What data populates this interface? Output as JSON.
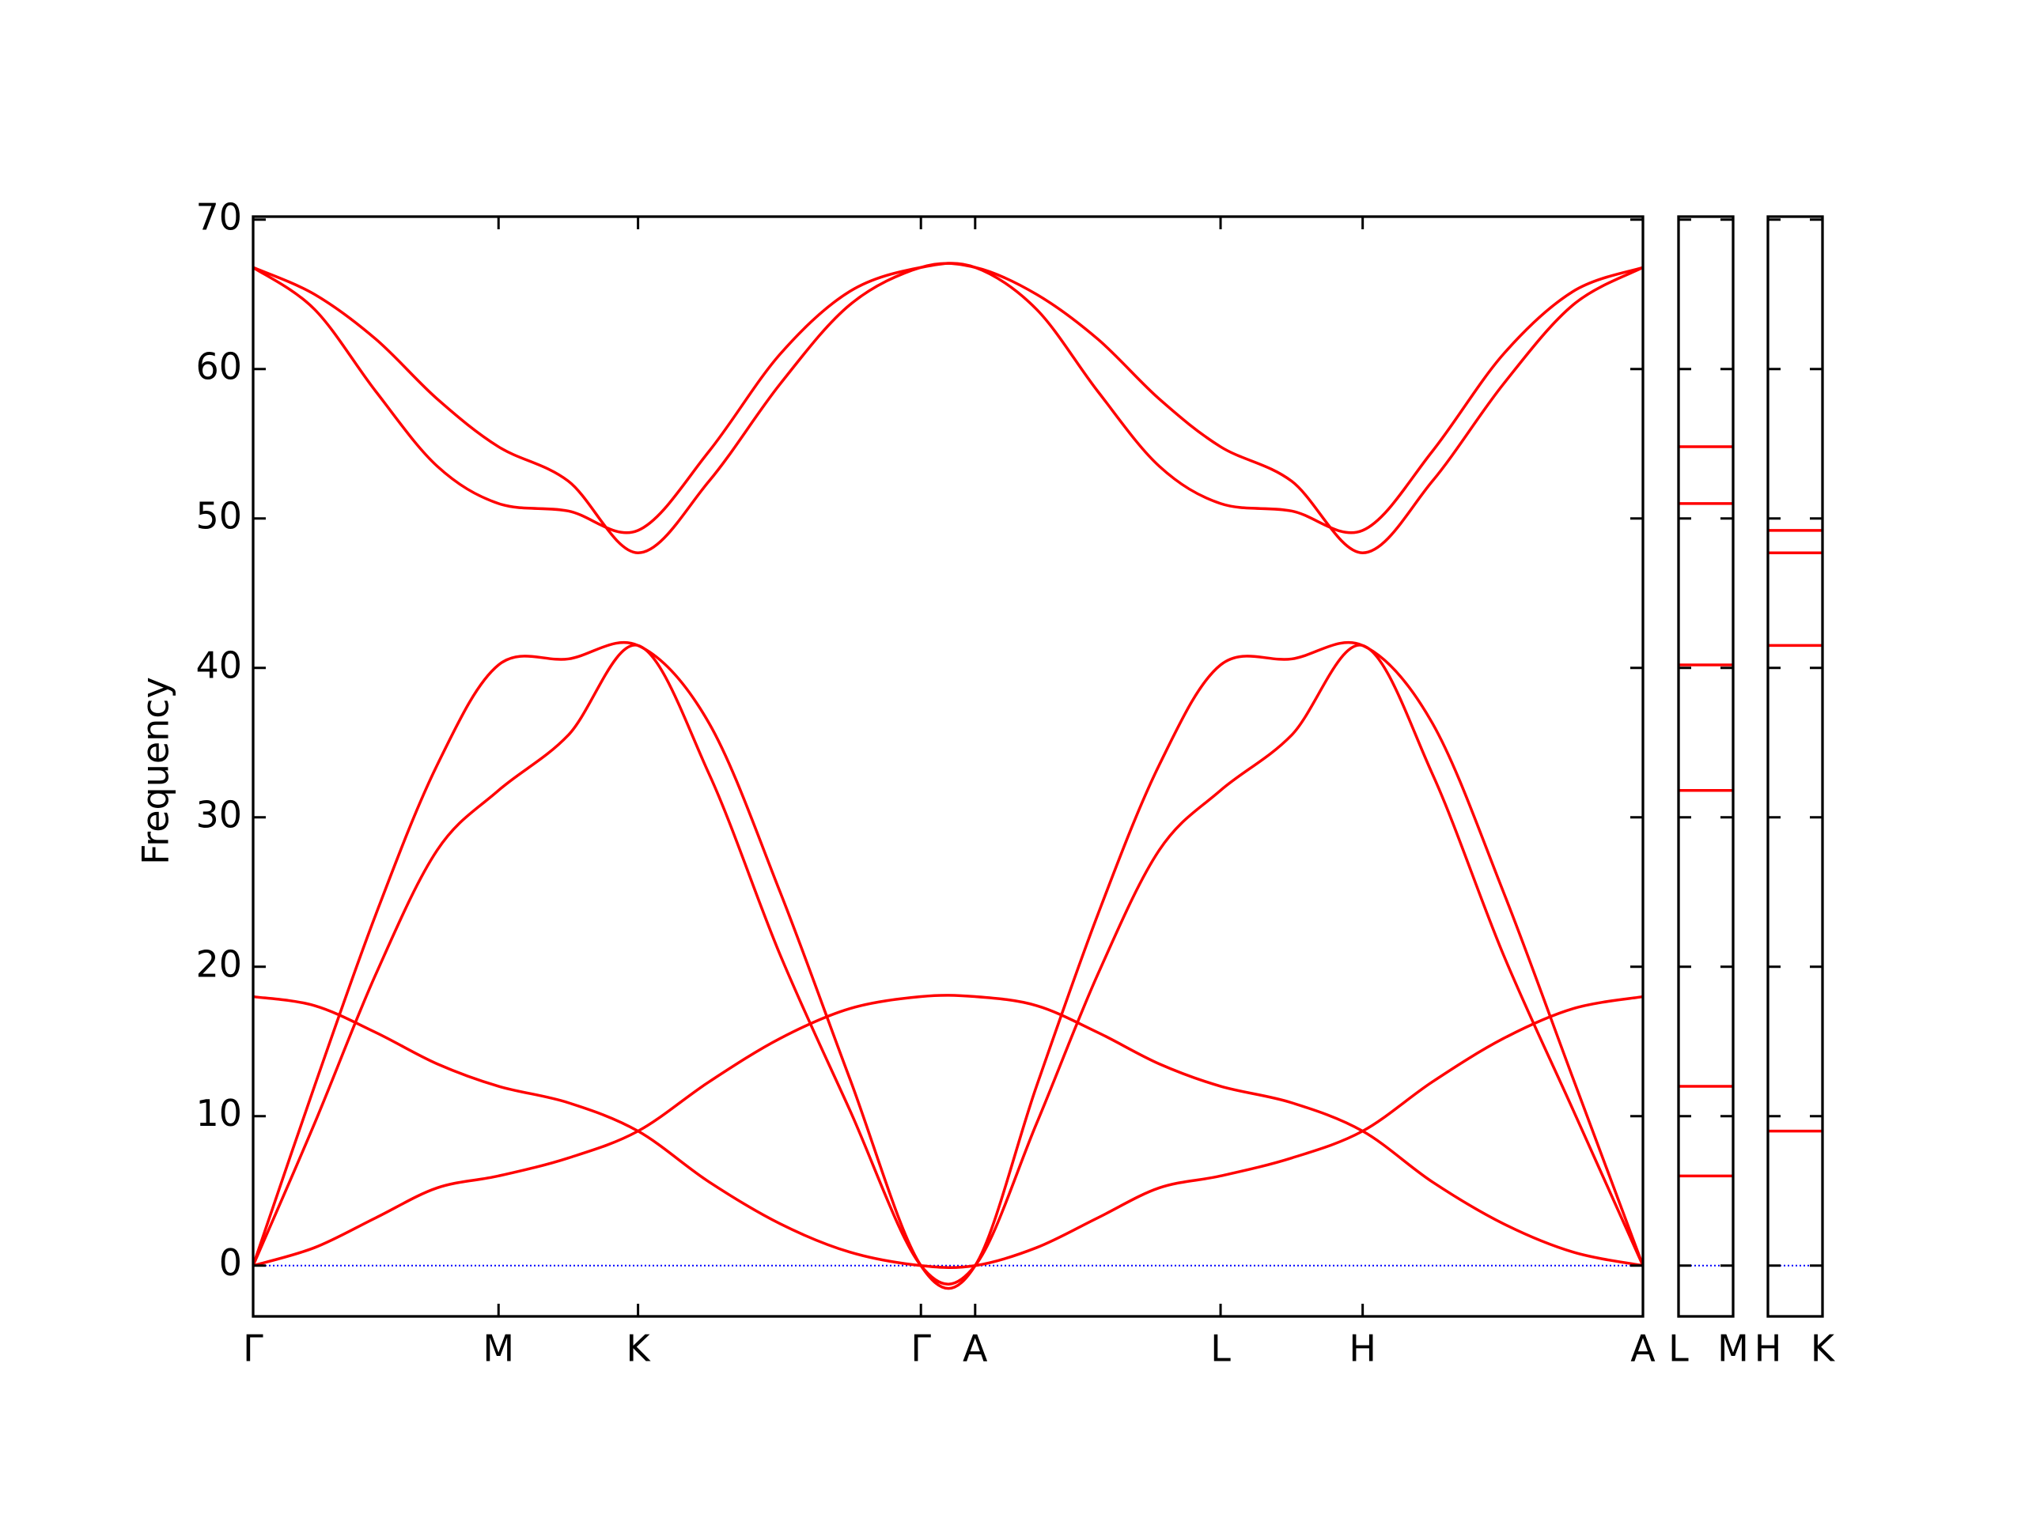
{
  "chart_data": [
    {
      "type": "line",
      "ylabel": "Frequency",
      "x": [
        0,
        47.5,
        95,
        142.5,
        190,
        244,
        298,
        353,
        408,
        462,
        517,
        559,
        606.5,
        654,
        701.5,
        749,
        804,
        859,
        913,
        968,
        1022,
        1076
      ],
      "xlim": [
        0,
        1076
      ],
      "xticks": [
        {
          "value": 0,
          "label": "Γ"
        },
        {
          "value": 190,
          "label": "M"
        },
        {
          "value": 298,
          "label": "K"
        },
        {
          "value": 517,
          "label": "Γ"
        },
        {
          "value": 559,
          "label": "A"
        },
        {
          "value": 749,
          "label": "L"
        },
        {
          "value": 859,
          "label": "H"
        },
        {
          "value": 1076,
          "label": "A"
        }
      ],
      "ylim": [
        -3.4,
        70.2
      ],
      "yticks": [
        0,
        10,
        20,
        30,
        40,
        50,
        60,
        70
      ],
      "show_ytick_labels": true,
      "hline": 0,
      "hline_color": "#0000ff",
      "series": [
        {
          "color": "#ff0000",
          "values": [
            0,
            1.2,
            3.2,
            5.2,
            6,
            7.2,
            9,
            12.3,
            15.2,
            17.2,
            18,
            18,
            17.4,
            15.6,
            13.5,
            12,
            10.9,
            9,
            5.6,
            2.8,
            0.9,
            0
          ]
        },
        {
          "color": "#ff0000",
          "values": [
            18,
            17.4,
            15.6,
            13.5,
            12,
            10.9,
            9,
            5.6,
            2.8,
            0.9,
            0,
            0,
            1.2,
            3.2,
            5.2,
            6,
            7.2,
            9,
            12.3,
            15.2,
            17.2,
            18
          ]
        },
        {
          "color": "#ff0000",
          "values": [
            0,
            12,
            23.5,
            33.5,
            40.2,
            40.6,
            41.5,
            36.3,
            25,
            12.5,
            0,
            0,
            12,
            23.5,
            33.5,
            40.2,
            40.6,
            41.5,
            36.3,
            25,
            12.5,
            0
          ]
        },
        {
          "color": "#ff0000",
          "values": [
            0,
            9.5,
            19.5,
            27.8,
            31.8,
            35.5,
            41.5,
            32.9,
            20.8,
            10.4,
            0,
            0,
            9.5,
            19.5,
            27.8,
            31.8,
            35.5,
            41.5,
            32.9,
            20.8,
            10.4,
            0
          ]
        },
        {
          "color": "#ff0000",
          "values": [
            66.8,
            65,
            62,
            58,
            54.8,
            52.5,
            47.7,
            52.5,
            59,
            64.3,
            66.8,
            66.8,
            65,
            62,
            58,
            54.8,
            52.5,
            47.7,
            52.5,
            59,
            64.3,
            66.8
          ]
        },
        {
          "color": "#ff0000",
          "values": [
            66.8,
            64,
            58.5,
            53.5,
            51,
            50.5,
            49.2,
            54.5,
            61,
            65.2,
            66.8,
            66.8,
            64,
            58.5,
            53.5,
            51,
            50.5,
            49.2,
            54.5,
            61,
            65.2,
            66.8
          ]
        }
      ]
    },
    {
      "type": "line",
      "x": [
        0,
        1
      ],
      "xlim": [
        0,
        1
      ],
      "xticks": [
        {
          "value": 0,
          "label": "L"
        },
        {
          "value": 1,
          "label": "M"
        }
      ],
      "ylim": [
        -3.4,
        70.2
      ],
      "yticks": [
        0,
        10,
        20,
        30,
        40,
        50,
        60,
        70
      ],
      "show_ytick_labels": false,
      "hline": 0,
      "hline_color": "#0000ff",
      "series": [
        {
          "color": "#ff0000",
          "values": [
            54.8,
            54.8
          ]
        },
        {
          "color": "#ff0000",
          "values": [
            51,
            51
          ]
        },
        {
          "color": "#ff0000",
          "values": [
            40.2,
            40.2
          ]
        },
        {
          "color": "#ff0000",
          "values": [
            31.8,
            31.8
          ]
        },
        {
          "color": "#ff0000",
          "values": [
            12,
            12
          ]
        },
        {
          "color": "#ff0000",
          "values": [
            6,
            6
          ]
        }
      ]
    },
    {
      "type": "line",
      "x": [
        0,
        1
      ],
      "xlim": [
        0,
        1
      ],
      "xticks": [
        {
          "value": 0,
          "label": "H"
        },
        {
          "value": 1,
          "label": "K"
        }
      ],
      "ylim": [
        -3.4,
        70.2
      ],
      "yticks": [
        0,
        10,
        20,
        30,
        40,
        50,
        60,
        70
      ],
      "show_ytick_labels": false,
      "hline": 0,
      "hline_color": "#0000ff",
      "series": [
        {
          "color": "#ff0000",
          "values": [
            49.2,
            49.2
          ]
        },
        {
          "color": "#ff0000",
          "values": [
            47.7,
            47.7
          ]
        },
        {
          "color": "#ff0000",
          "values": [
            41.5,
            41.5
          ]
        },
        {
          "color": "#ff0000",
          "values": [
            9,
            9
          ]
        }
      ]
    }
  ]
}
